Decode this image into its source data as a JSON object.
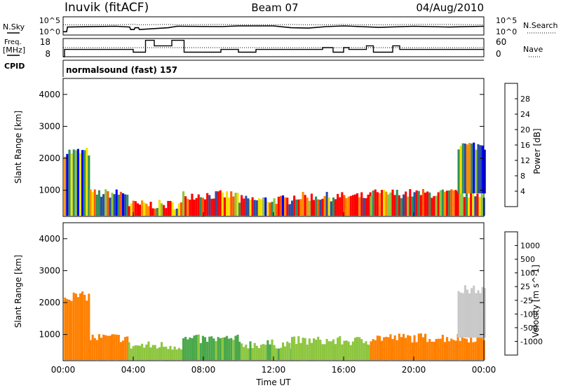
{
  "header": {
    "site": "Inuvik (fitACF)",
    "beam": "Beam 07",
    "date": "04/Aug/2010"
  },
  "noise_panel": {
    "left_label": "N.Sky",
    "right_label": "N.Search",
    "left_ticks": [
      "10^5",
      "10^0"
    ],
    "right_ticks": [
      "10^5",
      "10^0"
    ]
  },
  "freq_panel": {
    "left_label_line1": "Freq.",
    "left_label_line2": "[MHz]",
    "left_ticks": [
      "18",
      "8"
    ],
    "right_label": "Nave",
    "right_ticks": [
      "60",
      "0"
    ]
  },
  "cpid": {
    "label": "CPID",
    "value": "normalsound (fast) 157"
  },
  "chart_data": [
    {
      "type": "line",
      "name": "noise",
      "note": "sky noise (solid) and search noise (dotted), log scale",
      "x_hours": [
        0,
        0.2,
        0.25,
        3,
        3.8,
        3.85,
        4.05,
        4.1,
        4.3,
        4.35,
        6,
        6.5,
        9,
        10,
        12,
        13,
        14,
        15,
        16,
        17,
        18,
        20,
        22,
        24
      ],
      "sky": [
        0.9,
        0.9,
        2.2,
        2.4,
        2.2,
        1.5,
        1.5,
        2.0,
        2.0,
        1.5,
        2.0,
        2.4,
        2.3,
        2.5,
        2.5,
        2.0,
        1.9,
        2.3,
        2.5,
        2.3,
        2.1,
        2.4,
        2.2,
        2.4
      ],
      "search": [
        2.8,
        2.8,
        2.8,
        2.8,
        2.9,
        2.9,
        2.9,
        2.9,
        2.8,
        2.8,
        2.9,
        2.8,
        2.9,
        2.8,
        2.8,
        2.9,
        2.8,
        2.8,
        2.9,
        2.8,
        2.8,
        2.9,
        2.9,
        2.8
      ],
      "ylim": [
        0,
        5
      ]
    },
    {
      "type": "line",
      "name": "frequency",
      "freq_steps": [
        [
          0,
          0.08,
          8
        ],
        [
          0.08,
          4,
          12
        ],
        [
          4,
          4.7,
          10.5
        ],
        [
          4.7,
          5.2,
          17
        ],
        [
          5.2,
          6.2,
          14
        ],
        [
          6.2,
          6.9,
          17
        ],
        [
          6.9,
          9,
          10.5
        ],
        [
          9,
          10,
          12
        ],
        [
          10,
          11,
          10.5
        ],
        [
          11,
          14.8,
          12
        ],
        [
          14.8,
          15.4,
          13
        ],
        [
          15.4,
          16,
          10.5
        ],
        [
          16,
          16.3,
          13
        ],
        [
          16.3,
          17.3,
          12
        ],
        [
          17.3,
          17.7,
          14
        ],
        [
          17.7,
          18.8,
          10.5
        ],
        [
          18.8,
          19.2,
          14
        ],
        [
          19.2,
          21.8,
          12
        ],
        [
          21.8,
          24,
          12
        ]
      ],
      "nave_level": 30,
      "ylim": [
        8,
        18
      ],
      "ylim_right": [
        0,
        60
      ]
    },
    {
      "type": "heatmap",
      "name": "power",
      "xlabel": "",
      "ylabel": "Slant Range [km]",
      "xlim_hours": [
        0,
        24
      ],
      "ylim": [
        180,
        4500
      ],
      "yticks": [
        "1000",
        "2000",
        "3000",
        "4000"
      ],
      "colorbar_label": "Power [dB]",
      "colorbar_ticks": [
        "4",
        "8",
        "12",
        "16",
        "20",
        "24",
        "28"
      ],
      "colors": [
        "#0000ff",
        "#2b4ea0",
        "#2f8f5a",
        "#8dc63f",
        "#f6e000",
        "#ff8c00",
        "#ff5a00",
        "#ff0000"
      ],
      "cmap_range": [
        0,
        32
      ],
      "regions": [
        {
          "t0": 0.05,
          "t1": 1.5,
          "r0": 200,
          "r1": 2200,
          "v": 10
        },
        {
          "t0": 1.5,
          "t1": 3.7,
          "r0": 200,
          "r1": 900,
          "v": 14
        },
        {
          "t0": 3.7,
          "t1": 6.8,
          "r0": 200,
          "r1": 550,
          "v": 28
        },
        {
          "t0": 6.8,
          "t1": 10,
          "r0": 200,
          "r1": 850,
          "v": 22
        },
        {
          "t0": 10,
          "t1": 13,
          "r0": 200,
          "r1": 700,
          "v": 18
        },
        {
          "t0": 13,
          "t1": 17.5,
          "r0": 200,
          "r1": 800,
          "v": 24
        },
        {
          "t0": 17.5,
          "t1": 24,
          "r0": 200,
          "r1": 900,
          "v": 26
        },
        {
          "t0": 22.5,
          "t1": 24,
          "r0": 900,
          "r1": 2400,
          "v": 8
        }
      ]
    },
    {
      "type": "heatmap",
      "name": "velocity",
      "xlabel": "Time UT",
      "ylabel": "Slant Range [km]",
      "xlim_hours": [
        0,
        24
      ],
      "ylim": [
        180,
        4500
      ],
      "xticks": [
        "00:00",
        "04:00",
        "08:00",
        "12:00",
        "16:00",
        "20:00",
        "00:00"
      ],
      "yticks": [
        "1000",
        "2000",
        "3000",
        "4000"
      ],
      "colorbar_label": "Velocity [m s^-1]",
      "colorbar_ticks": [
        "1000",
        "500",
        "100",
        "25",
        "-25",
        "-100",
        "-500",
        "-1000"
      ],
      "colors": [
        "#2b4ea0",
        "#2f7d5a",
        "#4aa84a",
        "#8dc63f",
        "#c8c8c8",
        "#ffb000",
        "#ff8000",
        "#ff4000",
        "#ff0000"
      ],
      "regions": [
        {
          "t0": 0.05,
          "t1": 1.5,
          "r0": 200,
          "r1": 2200,
          "v": -300
        },
        {
          "t0": 1.5,
          "t1": 3.7,
          "r0": 200,
          "r1": 900,
          "v": -200
        },
        {
          "t0": 3.7,
          "t1": 6.8,
          "r0": 200,
          "r1": 650,
          "v": 50
        },
        {
          "t0": 6.8,
          "t1": 10,
          "r0": 200,
          "r1": 850,
          "v": 150
        },
        {
          "t0": 10,
          "t1": 13,
          "r0": 200,
          "r1": 700,
          "v": 80
        },
        {
          "t0": 13,
          "t1": 17.5,
          "r0": 200,
          "r1": 800,
          "v": 60
        },
        {
          "t0": 17.5,
          "t1": 24,
          "r0": 200,
          "r1": 900,
          "v": -250
        },
        {
          "t0": 22.5,
          "t1": 24,
          "r0": 900,
          "r1": 2400,
          "v": 0
        }
      ]
    }
  ]
}
